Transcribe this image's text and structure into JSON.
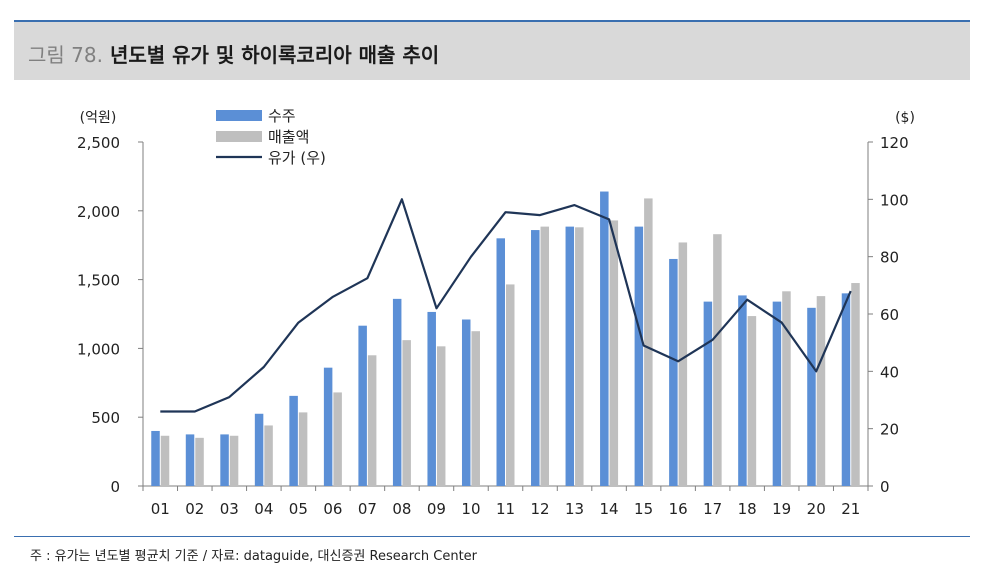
{
  "header": {
    "figure_number": "그림 78.",
    "title": "년도별 유가 및 하이록코리아 매출 추이"
  },
  "footer": {
    "source": "주 : 유가는 년도별 평균치 기준 / 자료:  dataguide, 대신증권 Research Center"
  },
  "colors": {
    "orders": "#5b8fd6",
    "sales": "#bfbfbf",
    "oil": "#1f3557",
    "title_band": "#d9d9d9",
    "rule": "#3a6fb0"
  },
  "chart_data": {
    "type": "bar",
    "title": "년도별 유가 및 하이록코리아 매출 추이",
    "categories": [
      "01",
      "02",
      "03",
      "04",
      "05",
      "06",
      "07",
      "08",
      "09",
      "10",
      "11",
      "12",
      "13",
      "14",
      "15",
      "16",
      "17",
      "18",
      "19",
      "20",
      "21"
    ],
    "left_axis": {
      "unit_label": "(억원)",
      "min": 0,
      "max": 2500,
      "ticks": [
        0,
        500,
        1000,
        1500,
        2000,
        2500
      ],
      "tick_labels": [
        "0",
        "500",
        "1,000",
        "1,500",
        "2,000",
        "2,500"
      ]
    },
    "right_axis": {
      "unit_label": "($)",
      "min": 0,
      "max": 120,
      "ticks": [
        0,
        20,
        40,
        60,
        80,
        100,
        120
      ],
      "tick_labels": [
        "0",
        "20",
        "40",
        "60",
        "80",
        "100",
        "120"
      ]
    },
    "series": [
      {
        "name": "수주",
        "type": "bar",
        "axis": "left",
        "values": [
          400,
          375,
          375,
          525,
          655,
          860,
          1165,
          1360,
          1265,
          1210,
          1800,
          1860,
          1885,
          2140,
          1885,
          1650,
          1340,
          1385,
          1340,
          1295,
          1400
        ]
      },
      {
        "name": "매출액",
        "type": "bar",
        "axis": "left",
        "values": [
          365,
          350,
          365,
          440,
          535,
          680,
          950,
          1060,
          1015,
          1125,
          1465,
          1885,
          1880,
          1930,
          2090,
          1770,
          1830,
          1235,
          1415,
          1380,
          1475
        ]
      },
      {
        "name": "유가 (우)",
        "type": "line",
        "axis": "right",
        "values": [
          26,
          26,
          31,
          41.5,
          57,
          66,
          72.5,
          100,
          62,
          80,
          95.5,
          94.5,
          98,
          93,
          49,
          43.5,
          51,
          65,
          57,
          40,
          68
        ]
      }
    ],
    "legend": {
      "placement": "top-center"
    }
  }
}
